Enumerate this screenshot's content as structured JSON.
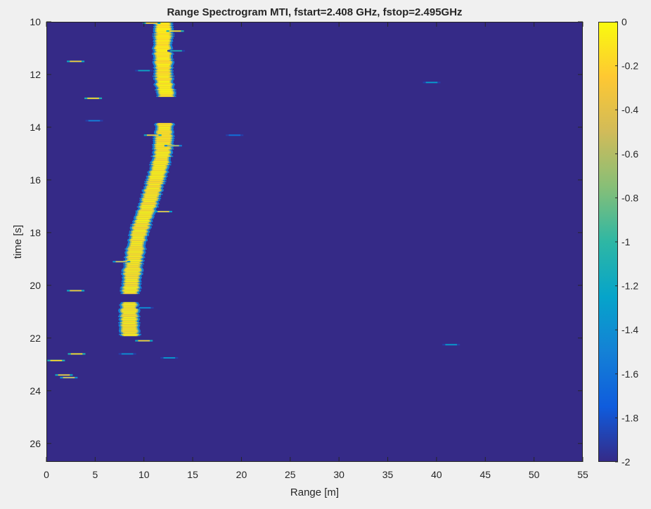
{
  "chart_data": {
    "type": "heatmap",
    "title": "Range Spectrogram MTI, fstart=2.408 GHz, fstop=2.495GHz",
    "xlabel": "Range [m]",
    "ylabel": "time [s]",
    "xlim": [
      0,
      55
    ],
    "ylim": [
      26.7,
      10
    ],
    "y_direction": "reversed",
    "x_ticks": [
      0,
      5,
      10,
      15,
      20,
      25,
      30,
      35,
      40,
      45,
      50,
      55
    ],
    "y_ticks": [
      10,
      12,
      14,
      16,
      18,
      20,
      22,
      24,
      26
    ],
    "grid": false,
    "colormap": "parula",
    "background_value": -2,
    "colorbar": {
      "limits": [
        -2,
        0
      ],
      "ticks": [
        0,
        -0.2,
        -0.4,
        -0.6,
        -0.8,
        -1,
        -1.2,
        -1.4,
        -1.6,
        -1.8,
        -2
      ],
      "tick_labels": [
        "0",
        "-0.2",
        "-0.4",
        "-0.6",
        "-0.8",
        "-1",
        "-1.2",
        "-1.4",
        "-1.6",
        "-1.8",
        "-2"
      ],
      "colors": [
        "#352a87",
        "#0f5cdd",
        "#1481d6",
        "#06a4ca",
        "#2eb7a4",
        "#87bf77",
        "#d1bb59",
        "#fec832",
        "#f9fb0e"
      ]
    },
    "target_track": [
      {
        "time": 10.0,
        "range": 12.0
      },
      {
        "time": 10.5,
        "range": 12.0
      },
      {
        "time": 11.0,
        "range": 11.9
      },
      {
        "time": 11.5,
        "range": 12.0
      },
      {
        "time": 12.0,
        "range": 12.0
      },
      {
        "time": 12.4,
        "range": 12.1
      },
      {
        "time": 12.7,
        "range": 12.3
      },
      {
        "time": 14.0,
        "range": 12.1
      },
      {
        "time": 14.5,
        "range": 12.0
      },
      {
        "time": 15.0,
        "range": 11.9
      },
      {
        "time": 15.5,
        "range": 11.6
      },
      {
        "time": 16.0,
        "range": 11.2
      },
      {
        "time": 16.5,
        "range": 10.8
      },
      {
        "time": 17.0,
        "range": 10.4
      },
      {
        "time": 17.5,
        "range": 9.9
      },
      {
        "time": 18.0,
        "range": 9.5
      },
      {
        "time": 18.5,
        "range": 9.2
      },
      {
        "time": 19.0,
        "range": 9.0
      },
      {
        "time": 19.5,
        "range": 8.8
      },
      {
        "time": 20.0,
        "range": 8.7
      },
      {
        "time": 20.2,
        "range": 8.6
      },
      {
        "time": 20.8,
        "range": 8.5
      },
      {
        "time": 21.2,
        "range": 8.5
      },
      {
        "time": 21.6,
        "range": 8.5
      },
      {
        "time": 21.9,
        "range": 8.6
      }
    ],
    "track_gaps": [
      [
        12.8,
        13.8
      ],
      [
        20.3,
        20.6
      ]
    ],
    "sporadic_returns": [
      {
        "time": 10.05,
        "range": 10.8,
        "value": -0.3
      },
      {
        "time": 10.35,
        "range": 13.2,
        "value": -0.2
      },
      {
        "time": 11.1,
        "range": 13.3,
        "value": -1.1
      },
      {
        "time": 11.5,
        "range": 3.0,
        "value": -0.3
      },
      {
        "time": 11.85,
        "range": 10.0,
        "value": -1.2
      },
      {
        "time": 12.3,
        "range": 39.5,
        "value": -1.3
      },
      {
        "time": 12.9,
        "range": 4.8,
        "value": -0.2
      },
      {
        "time": 13.75,
        "range": 4.9,
        "value": -1.5
      },
      {
        "time": 14.3,
        "range": 19.3,
        "value": -1.6
      },
      {
        "time": 14.3,
        "range": 10.9,
        "value": -0.3
      },
      {
        "time": 14.7,
        "range": 13.0,
        "value": -0.6
      },
      {
        "time": 17.2,
        "range": 12.0,
        "value": -0.4
      },
      {
        "time": 19.1,
        "range": 7.7,
        "value": -0.5
      },
      {
        "time": 20.2,
        "range": 3.0,
        "value": -0.3
      },
      {
        "time": 20.85,
        "range": 10.1,
        "value": -1.4
      },
      {
        "time": 22.1,
        "range": 10.0,
        "value": -0.3
      },
      {
        "time": 22.25,
        "range": 41.5,
        "value": -1.3
      },
      {
        "time": 22.6,
        "range": 3.1,
        "value": -0.2
      },
      {
        "time": 22.6,
        "range": 8.3,
        "value": -1.4
      },
      {
        "time": 22.75,
        "range": 12.6,
        "value": -1.3
      },
      {
        "time": 22.85,
        "range": 1.0,
        "value": -0.2
      },
      {
        "time": 23.4,
        "range": 1.8,
        "value": -0.3
      },
      {
        "time": 23.5,
        "range": 2.3,
        "value": -0.5
      }
    ]
  }
}
